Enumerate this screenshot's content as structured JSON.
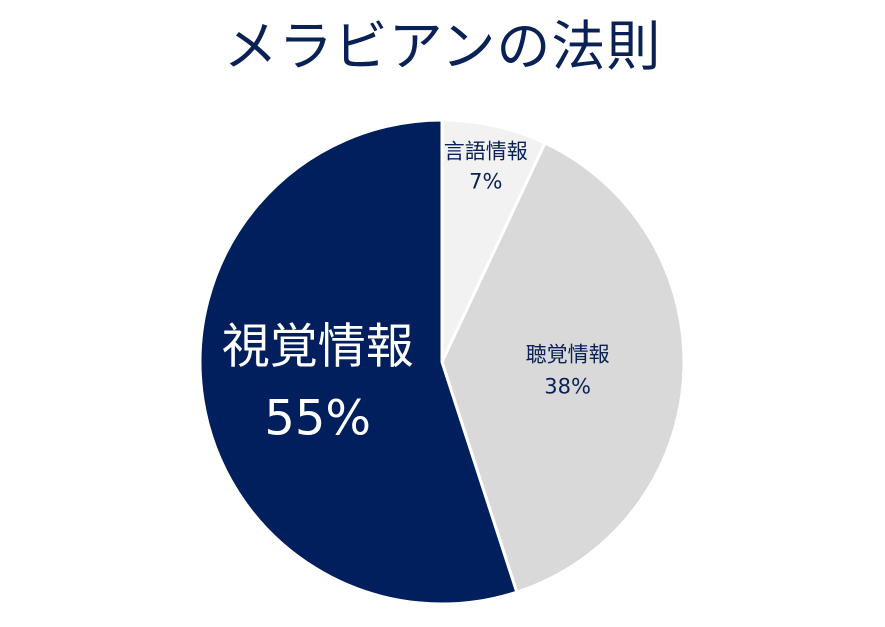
{
  "chart_data": {
    "type": "pie",
    "title": "メラビアンの法則",
    "categories": [
      "言語情報",
      "聴覚情報",
      "視覚情報"
    ],
    "values": [
      7,
      38,
      55
    ],
    "value_labels": [
      "7%",
      "38%",
      "55%"
    ],
    "start_angle": "12 o'clock",
    "direction": "clockwise",
    "legend": "none",
    "colors": [
      "#f2f2f2",
      "#d9d9d9",
      "#001f5c"
    ],
    "label_colors": [
      "#0a2156",
      "#0a2156",
      "#ffffff"
    ]
  }
}
